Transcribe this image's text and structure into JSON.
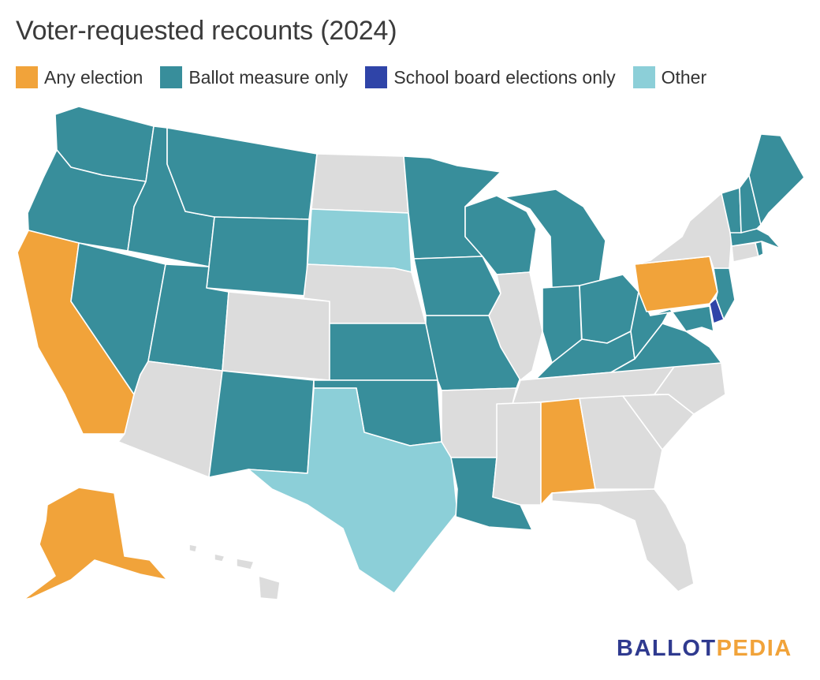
{
  "title": "Voter-requested recounts (2024)",
  "legend": [
    {
      "label": "Any election",
      "color": "#f1a33a"
    },
    {
      "label": "Ballot measure only",
      "color": "#388e9b"
    },
    {
      "label": "School board elections only",
      "color": "#2f44a8"
    },
    {
      "label": "Other",
      "color": "#8ccfd8"
    }
  ],
  "no_data_color": "#dcdcdc",
  "states": {
    "any_election": [
      "Alaska",
      "California",
      "Pennsylvania",
      "Alabama"
    ],
    "ballot_measure_only": [
      "Washington",
      "Oregon",
      "Idaho",
      "Montana",
      "Wyoming",
      "Nevada",
      "Utah",
      "New Mexico",
      "Kansas",
      "Oklahoma",
      "Minnesota",
      "Iowa",
      "Missouri",
      "Wisconsin",
      "Michigan",
      "Indiana",
      "Ohio",
      "Kentucky",
      "West Virginia",
      "Virginia",
      "Maryland",
      "New Jersey",
      "Louisiana",
      "Maine",
      "Vermont",
      "New Hampshire",
      "Massachusetts",
      "Rhode Island"
    ],
    "school_board_only": [
      "Delaware"
    ],
    "other": [
      "South Dakota",
      "Texas"
    ],
    "unshaded": [
      "North Dakota",
      "Nebraska",
      "Colorado",
      "Arizona",
      "Illinois",
      "Arkansas",
      "Mississippi",
      "Tennessee",
      "Georgia",
      "Florida",
      "South Carolina",
      "North Carolina",
      "New York",
      "Connecticut",
      "Hawaii"
    ]
  },
  "brand": {
    "part1": "BALLOT",
    "part2": "PEDIA"
  }
}
